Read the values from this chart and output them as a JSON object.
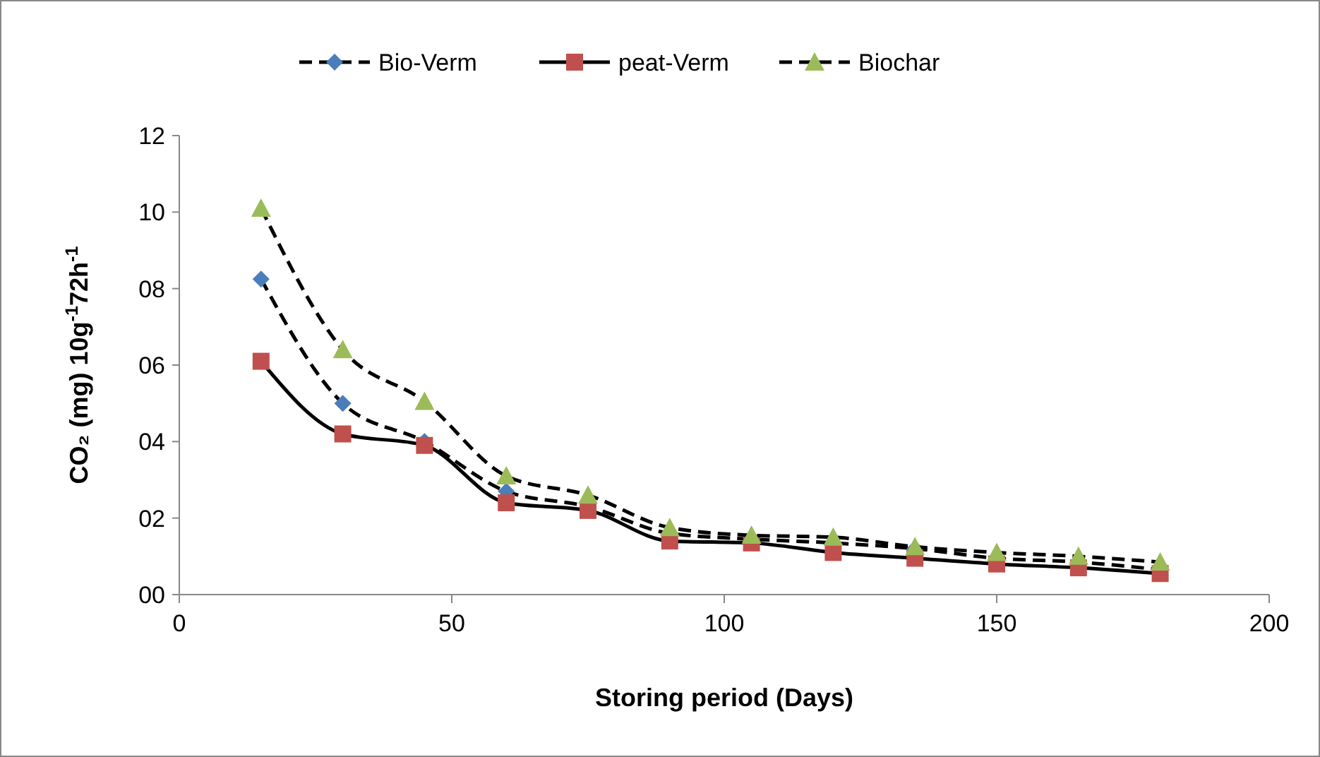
{
  "chart_data": {
    "type": "line",
    "xlabel": "Storing period (Days)",
    "ylabel": "CO₂ (mg) 10g$^{-1}$72h$^{-1}$",
    "x": [
      15,
      30,
      45,
      60,
      75,
      90,
      105,
      120,
      135,
      150,
      165,
      180
    ],
    "xlim": [
      0,
      200
    ],
    "xticks": [
      0,
      50,
      100,
      150,
      200
    ],
    "ylim": [
      0,
      12
    ],
    "yticks": [
      {
        "value": 0,
        "label": "00"
      },
      {
        "value": 2,
        "label": "02"
      },
      {
        "value": 4,
        "label": "04"
      },
      {
        "value": 6,
        "label": "06"
      },
      {
        "value": 8,
        "label": "08"
      },
      10,
      12
    ],
    "grid": false,
    "legend": "top",
    "series": [
      {
        "name": "Bio-Verm",
        "color": "#4a7ebb",
        "marker": "diamond",
        "line_style": "dashed",
        "values": [
          8.25,
          5.0,
          4.0,
          2.7,
          2.3,
          1.6,
          1.45,
          1.35,
          1.2,
          0.95,
          0.85,
          0.65
        ]
      },
      {
        "name": "peat-Verm",
        "color": "#c0504d",
        "marker": "square",
        "line_style": "solid",
        "values": [
          6.1,
          4.2,
          3.9,
          2.4,
          2.2,
          1.4,
          1.35,
          1.1,
          0.95,
          0.8,
          0.7,
          0.55
        ]
      },
      {
        "name": "Biochar",
        "color": "#9bbb59",
        "marker": "triangle",
        "line_style": "dashed",
        "values": [
          10.1,
          6.4,
          5.05,
          3.1,
          2.6,
          1.75,
          1.55,
          1.5,
          1.25,
          1.1,
          1.0,
          0.85
        ]
      }
    ]
  }
}
